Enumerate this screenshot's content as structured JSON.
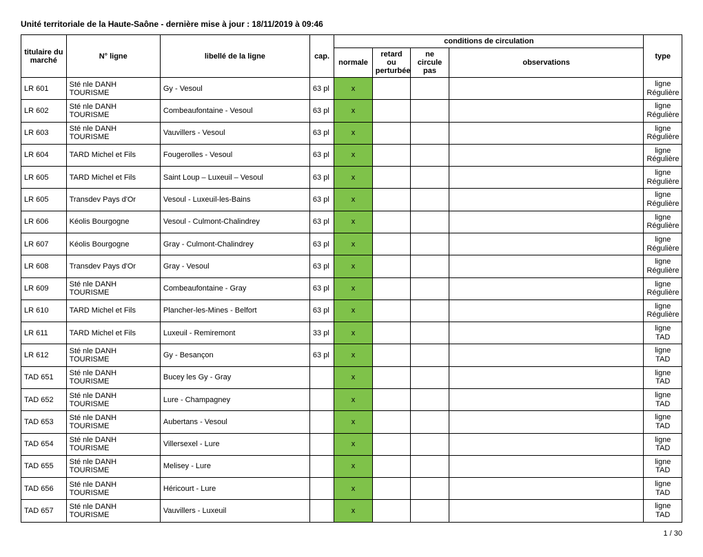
{
  "meta": {
    "title": "Unité territoriale de la Haute-Saône - dernière mise à jour : 18/11/2019 à 09:46",
    "page_num": "1 / 30"
  },
  "columns": {
    "titulaire": "titulaire du marché",
    "nligne": "N° ligne",
    "libelle": "libellé de la ligne",
    "cap": "cap.",
    "conditions": "conditions de circulation",
    "normale": "normale",
    "retard": "retard ou perturbée",
    "necircule": "ne circule pas",
    "observations": "observations",
    "type": "type"
  },
  "styling": {
    "mark_bg": "#7fc24a",
    "border_color": "#000000",
    "font_size_pt": 11,
    "header_font_weight": "bold"
  },
  "rows": [
    {
      "tit": "LR 601",
      "ligne": "Sté nle DANH TOURISME",
      "lib": "Gy - Vesoul",
      "cap": "63 pl",
      "norm": "x",
      "ret": "",
      "nec": "",
      "obs": "",
      "type": "ligne Régulière"
    },
    {
      "tit": "LR 602",
      "ligne": "Sté nle DANH TOURISME",
      "lib": "Combeaufontaine - Vesoul",
      "cap": "63 pl",
      "norm": "x",
      "ret": "",
      "nec": "",
      "obs": "",
      "type": "ligne Régulière"
    },
    {
      "tit": "LR 603",
      "ligne": "Sté nle DANH TOURISME",
      "lib": "Vauvillers - Vesoul",
      "cap": "63 pl",
      "norm": "x",
      "ret": "",
      "nec": "",
      "obs": "",
      "type": "ligne Régulière"
    },
    {
      "tit": "LR 604",
      "ligne": "TARD Michel et Fils",
      "lib": "Fougerolles - Vesoul",
      "cap": "63 pl",
      "norm": "x",
      "ret": "",
      "nec": "",
      "obs": "",
      "type": "ligne Régulière"
    },
    {
      "tit": "LR 605",
      "ligne": "TARD Michel et Fils",
      "lib": "Saint Loup – Luxeuil – Vesoul",
      "cap": "63 pl",
      "norm": "x",
      "ret": "",
      "nec": "",
      "obs": "",
      "type": "ligne Régulière"
    },
    {
      "tit": "LR 605",
      "ligne": "Transdev Pays d'Or",
      "lib": "Vesoul - Luxeuil-les-Bains",
      "cap": "63 pl",
      "norm": "x",
      "ret": "",
      "nec": "",
      "obs": "",
      "type": "ligne Régulière"
    },
    {
      "tit": "LR 606",
      "ligne": "Kéolis Bourgogne",
      "lib": "Vesoul - Culmont-Chalindrey",
      "cap": "63 pl",
      "norm": "x",
      "ret": "",
      "nec": "",
      "obs": "",
      "type": "ligne Régulière"
    },
    {
      "tit": "LR 607",
      "ligne": "Kéolis Bourgogne",
      "lib": "Gray - Culmont-Chalindrey",
      "cap": "63 pl",
      "norm": "x",
      "ret": "",
      "nec": "",
      "obs": "",
      "type": "ligne Régulière"
    },
    {
      "tit": "LR 608",
      "ligne": "Transdev Pays d'Or",
      "lib": "Gray - Vesoul",
      "cap": "63 pl",
      "norm": "x",
      "ret": "",
      "nec": "",
      "obs": "",
      "type": "ligne Régulière"
    },
    {
      "tit": "LR 609",
      "ligne": "Sté nle DANH TOURISME",
      "lib": "Combeaufontaine - Gray",
      "cap": "63 pl",
      "norm": "x",
      "ret": "",
      "nec": "",
      "obs": "",
      "type": "ligne Régulière"
    },
    {
      "tit": "LR 610",
      "ligne": "TARD Michel et Fils",
      "lib": "Plancher-les-Mines - Belfort",
      "cap": "63 pl",
      "norm": "x",
      "ret": "",
      "nec": "",
      "obs": "",
      "type": "ligne Régulière"
    },
    {
      "tit": "LR 611",
      "ligne": "TARD Michel et Fils",
      "lib": "Luxeuil - Remiremont",
      "cap": "33 pl",
      "norm": "x",
      "ret": "",
      "nec": "",
      "obs": "",
      "type": "ligne TAD"
    },
    {
      "tit": "LR 612",
      "ligne": "Sté nle DANH TOURISME",
      "lib": "Gy - Besançon",
      "cap": "63 pl",
      "norm": "x",
      "ret": "",
      "nec": "",
      "obs": "",
      "type": "ligne TAD"
    },
    {
      "tit": "TAD 651",
      "ligne": "Sté nle DANH TOURISME",
      "lib": "Bucey les Gy - Gray",
      "cap": "",
      "norm": "x",
      "ret": "",
      "nec": "",
      "obs": "",
      "type": "ligne TAD"
    },
    {
      "tit": "TAD 652",
      "ligne": "Sté nle DANH TOURISME",
      "lib": "Lure - Champagney",
      "cap": "",
      "norm": "x",
      "ret": "",
      "nec": "",
      "obs": "",
      "type": "ligne TAD"
    },
    {
      "tit": "TAD 653",
      "ligne": "Sté nle DANH TOURISME",
      "lib": "Aubertans - Vesoul",
      "cap": "",
      "norm": "x",
      "ret": "",
      "nec": "",
      "obs": "",
      "type": "ligne TAD"
    },
    {
      "tit": "TAD 654",
      "ligne": "Sté nle DANH TOURISME",
      "lib": "Villersexel - Lure",
      "cap": "",
      "norm": "x",
      "ret": "",
      "nec": "",
      "obs": "",
      "type": "ligne TAD"
    },
    {
      "tit": "TAD 655",
      "ligne": "Sté nle DANH TOURISME",
      "lib": "Melisey - Lure",
      "cap": "",
      "norm": "x",
      "ret": "",
      "nec": "",
      "obs": "",
      "type": "ligne TAD"
    },
    {
      "tit": "TAD 656",
      "ligne": "Sté nle DANH TOURISME",
      "lib": "Héricourt - Lure",
      "cap": "",
      "norm": "x",
      "ret": "",
      "nec": "",
      "obs": "",
      "type": "ligne TAD"
    },
    {
      "tit": "TAD 657",
      "ligne": "Sté nle DANH TOURISME",
      "lib": "Vauvillers - Luxeuil",
      "cap": "",
      "norm": "x",
      "ret": "",
      "nec": "",
      "obs": "",
      "type": "ligne TAD"
    }
  ]
}
